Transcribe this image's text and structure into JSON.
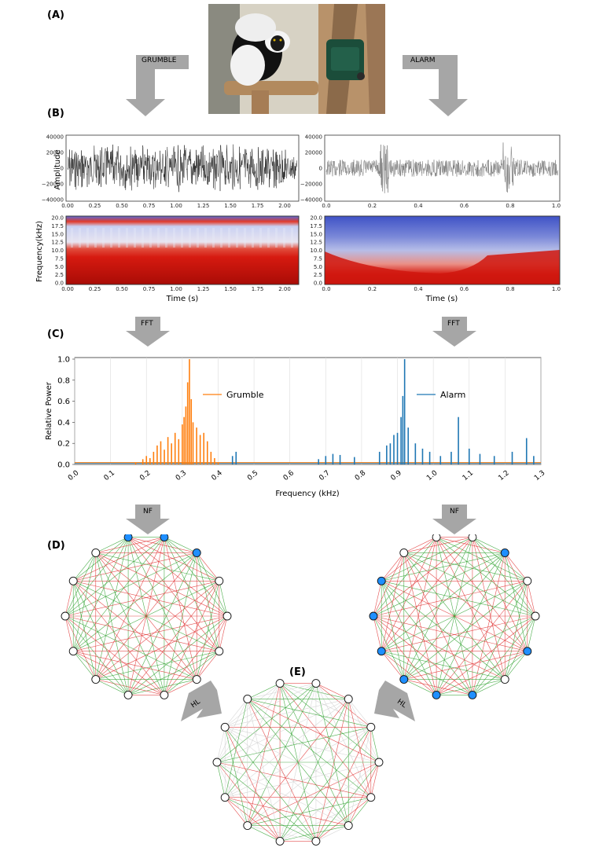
{
  "labels": {
    "A": "(A)",
    "B": "(B)",
    "C": "(C)",
    "D": "(D)",
    "E": "(E)"
  },
  "arrows": {
    "grumble": "GRUMBLE",
    "alarm": "ALARM",
    "fft_left": "FFT",
    "fft_right": "FFT",
    "nf_left": "NF",
    "nf_right": "NF",
    "hl_left": "HL",
    "hl_right": "HL"
  },
  "photo": {
    "alt": "Black-and-white ruffed lemur next to a green audio speaker box"
  },
  "waveforms": {
    "ylabel": "Amplitude",
    "yticks": [
      "40000",
      "20000",
      "0",
      "−20000",
      "−40000"
    ],
    "left_xticks": [
      "0.00",
      "0.25",
      "0.50",
      "0.75",
      "1.00",
      "1.25",
      "1.50",
      "1.75",
      "2.00"
    ],
    "right_xticks": [
      "0.0",
      "0.2",
      "0.4",
      "0.6",
      "0.8",
      "1.0"
    ]
  },
  "spectrograms": {
    "ylabel": "Frequency(kHz)",
    "yticks": [
      "20.0",
      "17.5",
      "15.0",
      "12.5",
      "10.0",
      "7.5",
      "5.0",
      "2.5",
      "0.0"
    ],
    "xlabel": "Time (s)"
  },
  "colors": {
    "grumble": "#ff7f0e",
    "alarm": "#1f77b4",
    "red_edge": "#e03030",
    "green_edge": "#2ca02c",
    "node_blue": "#1f8fff",
    "arrow": "#a6a6a6"
  },
  "chart_data": {
    "type": "line",
    "title": "",
    "xlabel": "Frequency (kHz)",
    "ylabel": "Relative Power",
    "xlim": [
      0.0,
      1.3
    ],
    "ylim": [
      0.0,
      1.0
    ],
    "x_ticks": [
      "0.0",
      "0.1",
      "0.2",
      "0.3",
      "0.4",
      "0.5",
      "0.6",
      "0.7",
      "0.8",
      "0.9",
      "1.0",
      "1.1",
      "1.2",
      "1.3"
    ],
    "y_ticks": [
      "0.0",
      "0.2",
      "0.4",
      "0.6",
      "0.8",
      "1.0"
    ],
    "grid": "vertical",
    "series": [
      {
        "name": "Grumble",
        "color": "#ff7f0e",
        "x": [
          0.17,
          0.19,
          0.2,
          0.21,
          0.22,
          0.23,
          0.24,
          0.25,
          0.26,
          0.27,
          0.28,
          0.29,
          0.3,
          0.305,
          0.31,
          0.315,
          0.32,
          0.325,
          0.33,
          0.34,
          0.35,
          0.36,
          0.37,
          0.38,
          0.39,
          0.4
        ],
        "values": [
          0.02,
          0.05,
          0.08,
          0.06,
          0.12,
          0.18,
          0.22,
          0.14,
          0.26,
          0.2,
          0.3,
          0.24,
          0.38,
          0.45,
          0.55,
          0.78,
          1.0,
          0.62,
          0.4,
          0.35,
          0.28,
          0.3,
          0.22,
          0.12,
          0.06,
          0.02
        ]
      },
      {
        "name": "Alarm",
        "color": "#1f77b4",
        "x": [
          0.44,
          0.45,
          0.68,
          0.7,
          0.72,
          0.74,
          0.78,
          0.85,
          0.87,
          0.88,
          0.89,
          0.9,
          0.91,
          0.915,
          0.92,
          0.93,
          0.95,
          0.97,
          0.99,
          1.02,
          1.05,
          1.07,
          1.1,
          1.13,
          1.17,
          1.22,
          1.26,
          1.28
        ],
        "values": [
          0.08,
          0.12,
          0.05,
          0.08,
          0.1,
          0.09,
          0.07,
          0.12,
          0.18,
          0.2,
          0.28,
          0.3,
          0.45,
          0.65,
          1.0,
          0.35,
          0.2,
          0.15,
          0.12,
          0.08,
          0.12,
          0.45,
          0.15,
          0.1,
          0.08,
          0.12,
          0.25,
          0.08
        ]
      }
    ],
    "legend": [
      "Grumble",
      "Alarm"
    ]
  },
  "networks": {
    "left": {
      "node_count": 14,
      "blue_nodes": [
        0,
        1,
        2
      ]
    },
    "right": {
      "node_count": 14,
      "blue_nodes": [
        2,
        5,
        7,
        8,
        9,
        10,
        11,
        12
      ]
    },
    "merged": {
      "node_count": 14,
      "blue_nodes": []
    }
  }
}
